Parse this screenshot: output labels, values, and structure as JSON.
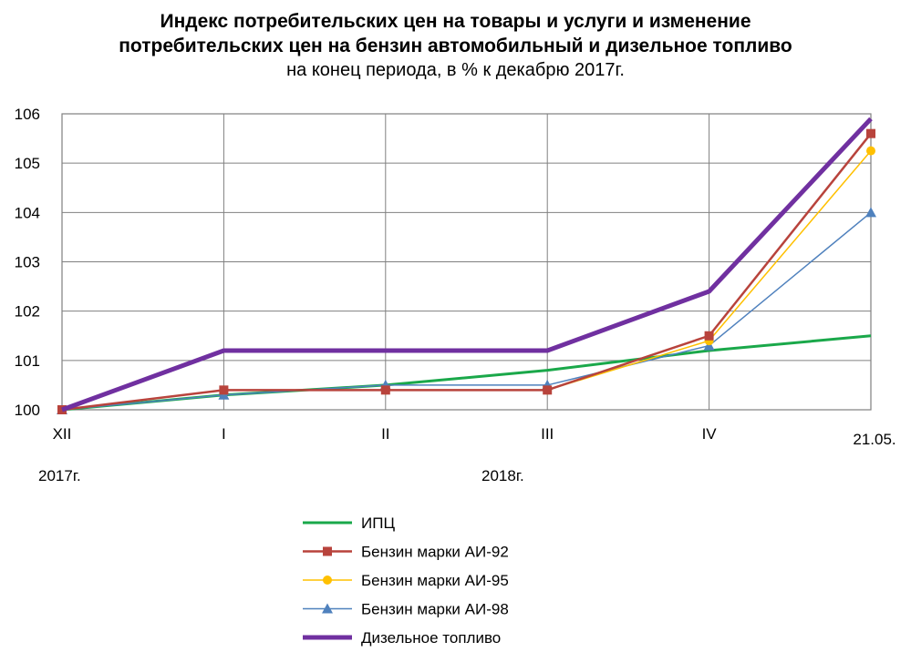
{
  "title": {
    "line1": "Индекс потребительских  цен на товары и услуги и изменение",
    "line2": "потребительских  цен на бензин автомобильный  и дизельное  топливо",
    "subtitle": "на конец периода, в % к декабрю 2017г."
  },
  "chart_data": {
    "type": "line",
    "categories": [
      "XII",
      "I",
      "II",
      "III",
      "IV",
      "21.05."
    ],
    "year_labels": [
      "2017г.",
      "2018г."
    ],
    "ylim": [
      100,
      106
    ],
    "yticks": [
      "100",
      "101",
      "102",
      "103",
      "104",
      "105",
      "106"
    ],
    "grid": true,
    "legend_position": "bottom",
    "series": [
      {
        "name": "ИПЦ",
        "color": "#1aa84a",
        "marker": "none",
        "width": 3,
        "values": [
          100.0,
          100.3,
          100.5,
          100.8,
          101.2,
          101.5
        ]
      },
      {
        "name": "Бензин марки АИ-92",
        "color": "#b8433c",
        "marker": "square",
        "width": 2.5,
        "values": [
          100.0,
          100.4,
          100.4,
          100.4,
          101.5,
          105.6
        ]
      },
      {
        "name": "Бензин марки АИ-95",
        "color": "#ffc000",
        "marker": "circle",
        "width": 1.5,
        "values": [
          100.0,
          100.4,
          100.4,
          100.4,
          101.4,
          105.25
        ]
      },
      {
        "name": "Бензин марки АИ-98",
        "color": "#4f81bd",
        "marker": "triangle",
        "width": 1.5,
        "values": [
          100.0,
          100.3,
          100.5,
          100.5,
          101.3,
          104.0
        ]
      },
      {
        "name": "Дизельное топливо",
        "color": "#7030a0",
        "marker": "none",
        "width": 5,
        "values": [
          100.0,
          101.2,
          101.2,
          101.2,
          102.4,
          105.9
        ]
      }
    ]
  }
}
